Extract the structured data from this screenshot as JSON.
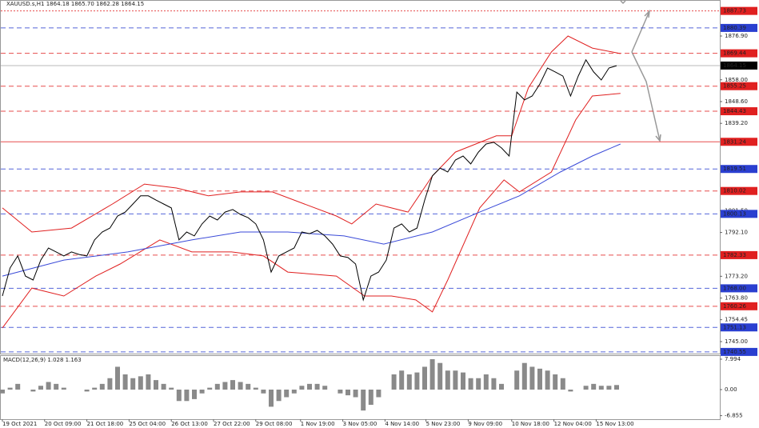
{
  "chart_data": [
    {
      "type": "line",
      "title": "XAUUSD.s,H1  1864.18 1865.70 1862.28 1864.15",
      "xlim": [
        0,
        560
      ],
      "ylim": [
        1740.17,
        1888.99
      ],
      "yticks": [
        {
          "value": 1876.9,
          "label": "1876.90"
        },
        {
          "value": 1858,
          "label": "1858.00"
        },
        {
          "value": 1848.6,
          "label": "1848.60"
        },
        {
          "value": 1839.2,
          "label": "1839.20"
        },
        {
          "value": 1801.5,
          "label": "1801.50"
        },
        {
          "value": 1792.1,
          "label": "1792.10"
        },
        {
          "value": 1773.2,
          "label": "1773.20"
        },
        {
          "value": 1763.8,
          "label": "1763.80"
        },
        1754.45,
        {
          "value": 1745,
          "label": "1745.00"
        }
      ],
      "levels": [
        {
          "value": 1887.73,
          "color": "#e02020",
          "style": "dotted"
        },
        {
          "value": 1880.39,
          "color": "#2a3fd0",
          "style": "dashed"
        },
        {
          "value": 1869.44,
          "color": "#e02020",
          "style": "dashed"
        },
        {
          "value": 1864.15,
          "color": "#000000",
          "style": "solid"
        },
        {
          "value": 1855.25,
          "color": "#e02020",
          "style": "dashed"
        },
        {
          "value": 1844.43,
          "color": "#e02020",
          "style": "dashed"
        },
        {
          "value": 1831.24,
          "color": "#e02020",
          "style": "solid"
        },
        {
          "value": 1819.51,
          "color": "#2a3fd0",
          "style": "dashed"
        },
        {
          "value": 1810.02,
          "color": "#e02020",
          "style": "dashed"
        },
        {
          "value": 1800.13,
          "color": "#2a3fd0",
          "style": "dashed"
        },
        {
          "value": 1782.33,
          "color": "#e02020",
          "style": "dashed"
        },
        {
          "value": 1768,
          "label": "1768.00",
          "color": "#2a3fd0",
          "style": "dashed"
        },
        {
          "value": 1760.26,
          "color": "#e02020",
          "style": "dashed"
        },
        {
          "value": 1751.13,
          "color": "#2a3fd0",
          "style": "dashed"
        },
        {
          "value": 1740.55,
          "color": "#2a3fd0",
          "style": "dashed"
        }
      ],
      "series": [
        {
          "color": "#e02020",
          "x": [
            0,
            23,
            54,
            86,
            111,
            136,
            161,
            186,
            211,
            236,
            261,
            273,
            292,
            317,
            336,
            354,
            386,
            398,
            411,
            429,
            442,
            461,
            483
          ],
          "values": [
            1802.7,
            1792.3,
            1794.0,
            1804.4,
            1813.0,
            1811.3,
            1807.9,
            1809.6,
            1809.6,
            1804.4,
            1799.2,
            1795.8,
            1804.4,
            1800.9,
            1816.5,
            1826.8,
            1833.8,
            1833.8,
            1854.5,
            1870.0,
            1876.9,
            1871.7,
            1869.3
          ]
        },
        {
          "color": "#e02020",
          "x": [
            0,
            23,
            48,
            73,
            92,
            123,
            148,
            179,
            204,
            223,
            261,
            283,
            304,
            323,
            336,
            348,
            373,
            392,
            404,
            429,
            448,
            461,
            483
          ],
          "values": [
            1750.9,
            1768.1,
            1764.7,
            1773.3,
            1778.5,
            1788.9,
            1783.7,
            1783.7,
            1782.0,
            1775.0,
            1773.3,
            1764.7,
            1764.7,
            1763.0,
            1757.8,
            1771.6,
            1802.7,
            1814.8,
            1809.6,
            1818.2,
            1840.7,
            1851.0,
            1852.1
          ]
        },
        {
          "color": "#3a4ad8",
          "x": [
            0,
            48,
            98,
            148,
            186,
            223,
            267,
            298,
            336,
            373,
            404,
            436,
            461,
            483
          ],
          "values": [
            1773.3,
            1780.2,
            1783.7,
            1788.9,
            1792.3,
            1792.3,
            1790.6,
            1787.1,
            1792.3,
            1800.9,
            1807.9,
            1818.2,
            1825.1,
            1830.3
          ]
        },
        {
          "color": "#000000",
          "x": [
            0,
            6,
            12,
            18,
            24,
            30,
            36,
            42,
            48,
            54,
            60,
            66,
            72,
            78,
            84,
            90,
            96,
            102,
            108,
            114,
            120,
            126,
            132,
            138,
            144,
            150,
            156,
            162,
            168,
            174,
            180,
            186,
            192,
            198,
            204,
            210,
            216,
            222,
            228,
            234,
            240,
            246,
            252,
            258,
            264,
            270,
            276,
            282,
            288,
            294,
            300,
            306,
            312,
            318,
            324,
            330,
            336,
            342,
            348,
            354,
            360,
            366,
            372,
            378,
            384,
            390,
            396,
            402,
            408,
            414,
            420,
            426,
            432,
            438,
            444,
            450,
            456,
            462,
            468,
            474,
            480
          ],
          "values": [
            1764.7,
            1776.8,
            1782.0,
            1773.3,
            1771.6,
            1780.2,
            1785.4,
            1783.7,
            1782.0,
            1783.7,
            1782.6,
            1782.0,
            1788.9,
            1792.3,
            1794.0,
            1799.2,
            1800.9,
            1804.4,
            1807.9,
            1807.9,
            1806.1,
            1804.4,
            1802.7,
            1788.9,
            1792.3,
            1790.6,
            1795.8,
            1799.2,
            1797.5,
            1800.9,
            1802.0,
            1799.9,
            1798.5,
            1795.8,
            1788.9,
            1775.0,
            1782.0,
            1783.7,
            1785.4,
            1792.3,
            1791.6,
            1793.0,
            1790.6,
            1787.1,
            1782.0,
            1781.3,
            1778.5,
            1763.0,
            1773.3,
            1775.0,
            1780.2,
            1794.0,
            1795.8,
            1792.3,
            1794.0,
            1806.1,
            1816.5,
            1819.9,
            1818.2,
            1823.4,
            1825.1,
            1821.7,
            1826.8,
            1830.3,
            1831.0,
            1828.6,
            1825.1,
            1852.7,
            1849.3,
            1851.0,
            1856.2,
            1863.1,
            1861.4,
            1859.6,
            1851.0,
            1859.6,
            1866.6,
            1861.4,
            1857.9,
            1863.1,
            1864.1
          ]
        }
      ]
    },
    {
      "type": "bar",
      "title": "MACD(12,26,9) 1.028 1.163",
      "color": "#8a8a8a",
      "xlim": [
        0,
        560
      ],
      "ylim": [
        -7.36,
        8.83
      ],
      "yticks": [
        7.994,
        {
          "value": 0,
          "label": "0.00"
        },
        -6.855
      ],
      "xticks": [
        {
          "value": 0,
          "label": "19 Oct 2021"
        },
        {
          "value": 33,
          "label": "20 Oct 09:00"
        },
        {
          "value": 66,
          "label": "21 Oct 18:00"
        },
        {
          "value": 99,
          "label": "25 Oct 04:00"
        },
        {
          "value": 132,
          "label": "26 Oct 13:00"
        },
        {
          "value": 165,
          "label": "27 Oct 22:00"
        },
        {
          "value": 198,
          "label": "29 Oct 08:00"
        },
        {
          "value": 233,
          "label": "1 Nov 19:00"
        },
        {
          "value": 266,
          "label": "3 Nov 05:00"
        },
        {
          "value": 299,
          "label": "4 Nov 14:00"
        },
        {
          "value": 331,
          "label": "5 Nov 23:00"
        },
        {
          "value": 364,
          "label": "9 Nov 09:00"
        },
        {
          "value": 398,
          "label": "10 Nov 18:00"
        },
        {
          "value": 431,
          "label": "12 Nov 04:00"
        },
        {
          "value": 464,
          "label": "15 Nov 13:00"
        }
      ],
      "x": [
        0,
        6,
        12,
        18,
        24,
        30,
        36,
        42,
        48,
        54,
        60,
        66,
        72,
        78,
        84,
        90,
        96,
        102,
        108,
        114,
        120,
        126,
        132,
        138,
        144,
        150,
        156,
        162,
        168,
        174,
        180,
        186,
        192,
        198,
        204,
        210,
        216,
        222,
        228,
        234,
        240,
        246,
        252,
        258,
        264,
        270,
        276,
        282,
        288,
        294,
        300,
        306,
        312,
        318,
        324,
        330,
        336,
        342,
        348,
        354,
        360,
        366,
        372,
        378,
        384,
        390,
        396,
        402,
        408,
        414,
        420,
        426,
        432,
        438,
        444,
        450,
        456,
        462,
        468,
        474,
        480
      ],
      "values": [
        -1,
        0.5,
        1.5,
        0,
        -0.5,
        1,
        2,
        1.5,
        0.5,
        0,
        0,
        -0.5,
        0.5,
        1.5,
        3,
        6,
        4,
        3,
        3.5,
        4,
        2.5,
        1.5,
        0.5,
        -3,
        -3,
        -2.5,
        -1,
        0.5,
        1.5,
        2,
        2.5,
        2,
        1.5,
        0.5,
        -1,
        -4.5,
        -3,
        -2,
        -1,
        1,
        1.5,
        1.5,
        1,
        0,
        -1,
        -1.5,
        -2,
        -5.5,
        -4,
        -2,
        0,
        4,
        5,
        4,
        4.5,
        6,
        8,
        7,
        5,
        5,
        4.5,
        3,
        3,
        4,
        3,
        1.5,
        0,
        5,
        7,
        6,
        5.5,
        5,
        4,
        3,
        -0.5,
        0,
        1,
        1.5,
        1,
        1,
        1.2
      ]
    }
  ]
}
